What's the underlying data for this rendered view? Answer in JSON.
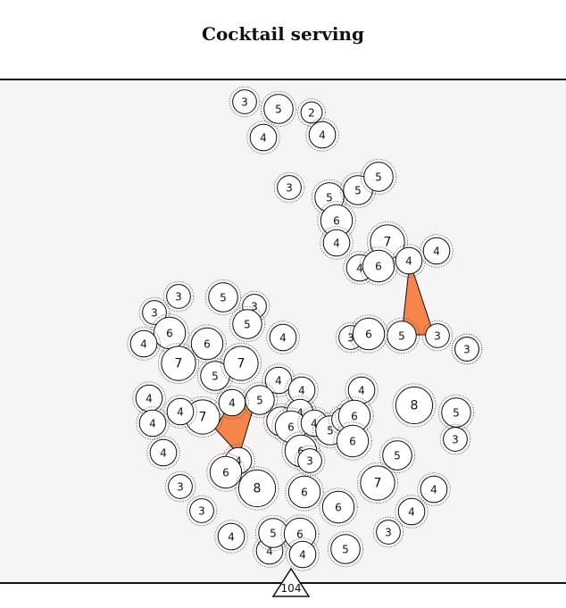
{
  "header": {
    "title": "Cocktail serving"
  },
  "footer": {
    "page_number": "104"
  },
  "colors": {
    "accent": "#f5854a",
    "board": "#f6f4f5",
    "ink": "#111111"
  },
  "tables": [
    {
      "label": "3"
    },
    {
      "label": "5"
    },
    {
      "label": "2"
    },
    {
      "label": "4"
    },
    {
      "label": "4"
    },
    {
      "label": "3"
    },
    {
      "label": "5"
    },
    {
      "label": "5"
    },
    {
      "label": "5"
    },
    {
      "label": "6"
    },
    {
      "label": "4"
    },
    {
      "label": "7"
    },
    {
      "label": "4"
    },
    {
      "label": "6"
    },
    {
      "label": "4"
    },
    {
      "label": "4"
    },
    {
      "label": "5"
    },
    {
      "label": "3"
    },
    {
      "label": "3"
    },
    {
      "label": "6"
    },
    {
      "label": "3"
    },
    {
      "label": "3"
    },
    {
      "label": "5"
    },
    {
      "label": "3"
    },
    {
      "label": "3"
    },
    {
      "label": "5"
    },
    {
      "label": "6"
    },
    {
      "label": "4"
    },
    {
      "label": "6"
    },
    {
      "label": "4"
    },
    {
      "label": "7"
    },
    {
      "label": "5"
    },
    {
      "label": "7"
    },
    {
      "label": "4"
    },
    {
      "label": "4"
    },
    {
      "label": "4"
    },
    {
      "label": "4"
    },
    {
      "label": "4"
    },
    {
      "label": "7"
    },
    {
      "label": "4"
    },
    {
      "label": "5"
    },
    {
      "label": "4"
    },
    {
      "label": "5"
    },
    {
      "label": "4"
    },
    {
      "label": "6"
    },
    {
      "label": "4"
    },
    {
      "label": "5"
    },
    {
      "label": "3"
    },
    {
      "label": "6"
    },
    {
      "label": "6"
    },
    {
      "label": "6"
    },
    {
      "label": "3"
    },
    {
      "label": "8"
    },
    {
      "label": "5"
    },
    {
      "label": "3"
    },
    {
      "label": "4"
    },
    {
      "label": "4"
    },
    {
      "label": "6"
    },
    {
      "label": "5"
    },
    {
      "label": "3"
    },
    {
      "label": "8"
    },
    {
      "label": "6"
    },
    {
      "label": "7"
    },
    {
      "label": "4"
    },
    {
      "label": "3"
    },
    {
      "label": "4"
    },
    {
      "label": "6"
    },
    {
      "label": "4"
    },
    {
      "label": "4"
    },
    {
      "label": "5"
    },
    {
      "label": "6"
    },
    {
      "label": "4"
    },
    {
      "label": "3"
    },
    {
      "label": "5"
    },
    {
      "label": "3"
    }
  ]
}
